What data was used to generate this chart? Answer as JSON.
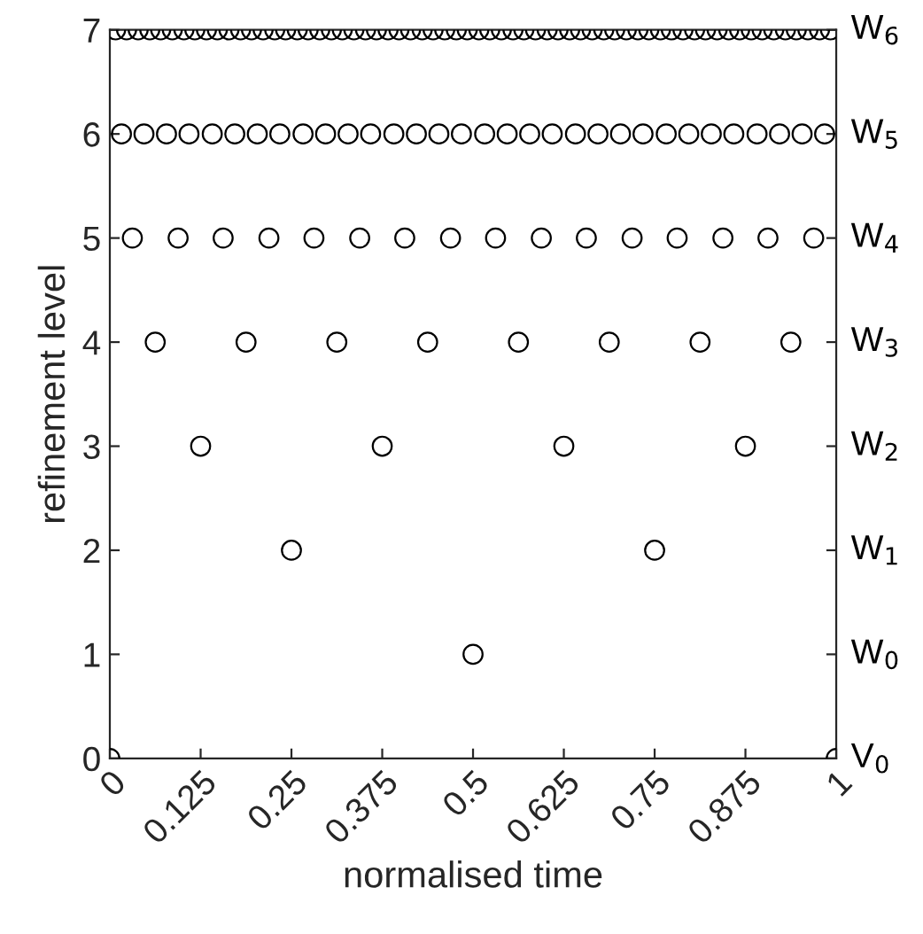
{
  "chart_data": {
    "type": "scatter",
    "xlabel": "normalised time",
    "ylabel": "refinement level",
    "marker": "circle",
    "grid": false,
    "legend": false,
    "xlim": [
      0,
      1
    ],
    "ylim": [
      0,
      7
    ],
    "xticks": [
      0,
      0.125,
      0.25,
      0.375,
      0.5,
      0.625,
      0.75,
      0.875,
      1
    ],
    "yticks": [
      0,
      1,
      2,
      3,
      4,
      5,
      6,
      7
    ],
    "series": [
      {
        "name": "V$_{0}$",
        "color": "#000000",
        "x": [
          0,
          1
        ],
        "values": [
          0,
          0
        ]
      },
      {
        "name": "W$_{0}$",
        "color": "#000000",
        "x": [
          0.5
        ],
        "values": [
          1
        ]
      },
      {
        "name": "W$_{1}$",
        "color": "#000000",
        "x": [
          0.25,
          0.75
        ],
        "values": [
          2,
          2
        ]
      },
      {
        "name": "W$_{2}$",
        "color": "#000000",
        "x": [
          0.125,
          0.375,
          0.625,
          0.875
        ],
        "values": [
          3,
          3,
          3,
          3
        ]
      },
      {
        "name": "W$_{3}$",
        "color": "#000000",
        "x": [
          0.0625,
          0.1875,
          0.3125,
          0.4375,
          0.5625,
          0.6875,
          0.8125,
          0.9375
        ],
        "values": [
          4,
          4,
          4,
          4,
          4,
          4,
          4,
          4
        ]
      },
      {
        "name": "W$_{4}$",
        "color": "#000000",
        "x": [
          0.031,
          0.094,
          0.156,
          0.219,
          0.281,
          0.344,
          0.406,
          0.469,
          0.531,
          0.594,
          0.656,
          0.719,
          0.781,
          0.844,
          0.906,
          0.969
        ],
        "values": [
          5,
          5,
          5,
          5,
          5,
          5,
          5,
          5,
          5,
          5,
          5,
          5,
          5,
          5,
          5,
          5
        ]
      },
      {
        "name": "W$_{5}$",
        "color": "#000000",
        "x": [
          0.016,
          0.047,
          0.078,
          0.109,
          0.141,
          0.172,
          0.203,
          0.234,
          0.266,
          0.297,
          0.328,
          0.359,
          0.391,
          0.422,
          0.453,
          0.484,
          0.516,
          0.547,
          0.578,
          0.609,
          0.641,
          0.672,
          0.703,
          0.734,
          0.766,
          0.797,
          0.828,
          0.859,
          0.891,
          0.922,
          0.953,
          0.984
        ],
        "values": [
          6,
          6,
          6,
          6,
          6,
          6,
          6,
          6,
          6,
          6,
          6,
          6,
          6,
          6,
          6,
          6,
          6,
          6,
          6,
          6,
          6,
          6,
          6,
          6,
          6,
          6,
          6,
          6,
          6,
          6,
          6,
          6
        ]
      },
      {
        "name": "W$_{6}$",
        "color": "#000000",
        "x": [
          0.008,
          0.023,
          0.039,
          0.055,
          0.07,
          0.086,
          0.102,
          0.117,
          0.133,
          0.148,
          0.164,
          0.18,
          0.195,
          0.211,
          0.227,
          0.242,
          0.258,
          0.273,
          0.289,
          0.305,
          0.32,
          0.336,
          0.352,
          0.367,
          0.383,
          0.398,
          0.414,
          0.43,
          0.445,
          0.461,
          0.477,
          0.492,
          0.508,
          0.523,
          0.539,
          0.555,
          0.57,
          0.586,
          0.602,
          0.617,
          0.633,
          0.648,
          0.664,
          0.68,
          0.695,
          0.711,
          0.727,
          0.742,
          0.758,
          0.773,
          0.789,
          0.805,
          0.82,
          0.836,
          0.852,
          0.867,
          0.883,
          0.898,
          0.914,
          0.93,
          0.945,
          0.961,
          0.977,
          0.992
        ],
        "values": [
          7,
          7,
          7,
          7,
          7,
          7,
          7,
          7,
          7,
          7,
          7,
          7,
          7,
          7,
          7,
          7,
          7,
          7,
          7,
          7,
          7,
          7,
          7,
          7,
          7,
          7,
          7,
          7,
          7,
          7,
          7,
          7,
          7,
          7,
          7,
          7,
          7,
          7,
          7,
          7,
          7,
          7,
          7,
          7,
          7,
          7,
          7,
          7,
          7,
          7,
          7,
          7,
          7,
          7,
          7,
          7,
          7,
          7,
          7,
          7,
          7,
          7,
          7,
          7
        ]
      }
    ]
  }
}
